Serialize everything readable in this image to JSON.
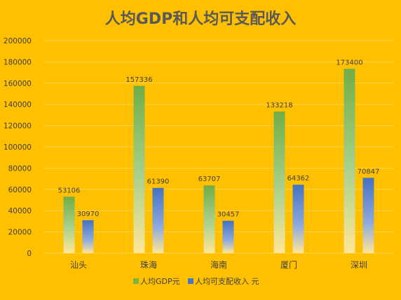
{
  "chart_data": {
    "type": "bar",
    "title": "人均GDP和人均可支配收入",
    "xlabel": "",
    "ylabel": "",
    "categories": [
      "汕头",
      "珠海",
      "海南",
      "厦门",
      "深圳"
    ],
    "series": [
      {
        "name": "人均GDP元",
        "values": [
          53106,
          157336,
          63707,
          133218,
          173400
        ],
        "color": "#7CB342"
      },
      {
        "name": "人均可支配收入 元",
        "values": [
          30970,
          61390,
          30457,
          64362,
          70847
        ],
        "color": "#4A74C4"
      }
    ],
    "ylim": [
      0,
      200000
    ],
    "yticks": [
      0,
      20000,
      40000,
      60000,
      80000,
      100000,
      120000,
      140000,
      160000,
      180000,
      200000
    ],
    "grid": true,
    "legend_position": "bottom",
    "data_labels": true
  }
}
